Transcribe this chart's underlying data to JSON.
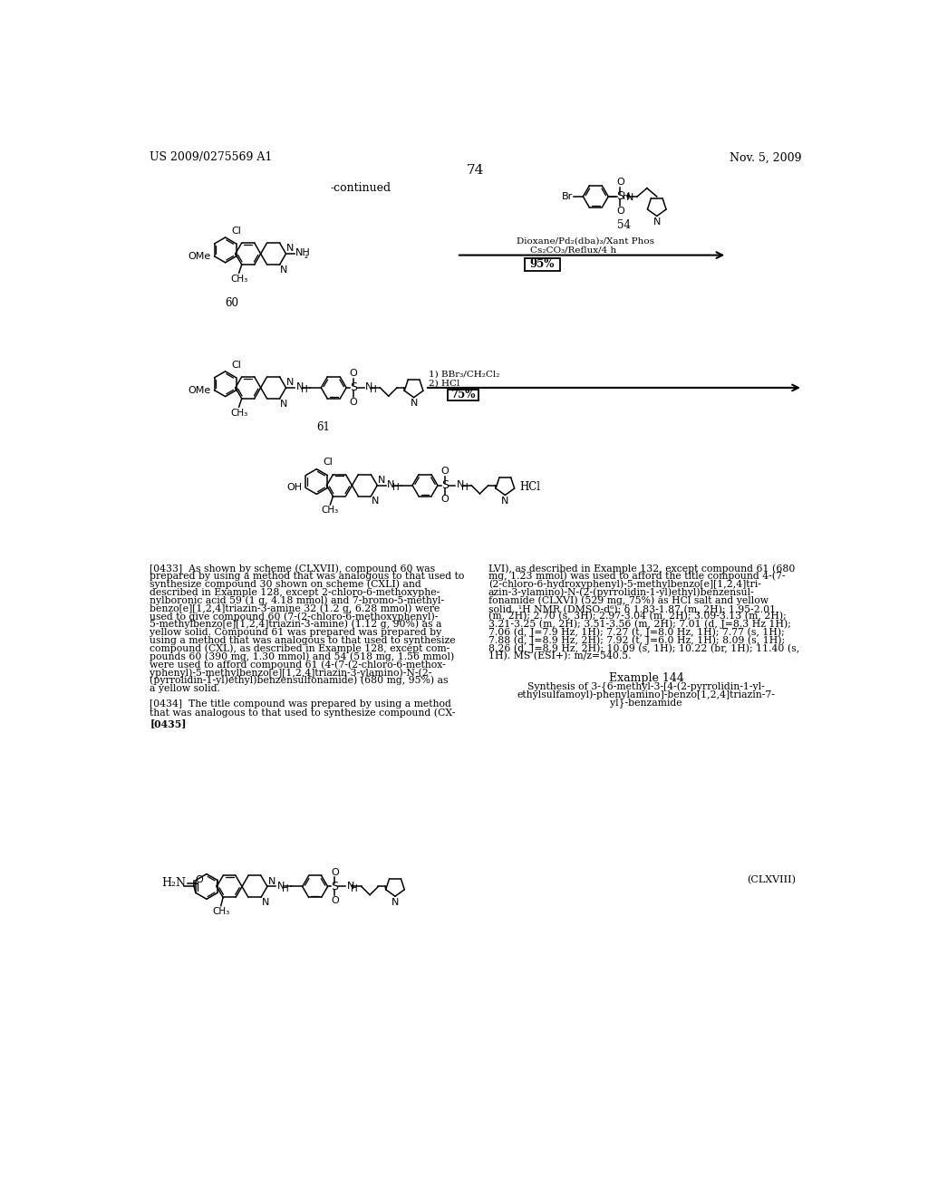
{
  "page_number": "74",
  "header_left": "US 2009/0275569 A1",
  "header_right": "Nov. 5, 2009",
  "continued_label": "-continued",
  "reaction1_yield": "95%",
  "reaction2_conditions1": "1) BBr₃/CH₂Cl₂",
  "reaction2_conditions2": "2) HCl",
  "reaction2_yield": "75%",
  "compound60_label": "60",
  "compound61_label": "61",
  "hcl_label": "HCl",
  "clxviii_label": "(CLXVIII)",
  "example_144_header": "Example 144",
  "example_144_title": "Synthesis of 3-{6-methyl-3-[4-(2-pyrrolidin-1-yl-\nethylsulfamoyl)-phenylamino]-benzo[1,2,4]triazin-7-\nyl}-benzamide",
  "para0435": "[0435]",
  "bg_color": "#ffffff"
}
